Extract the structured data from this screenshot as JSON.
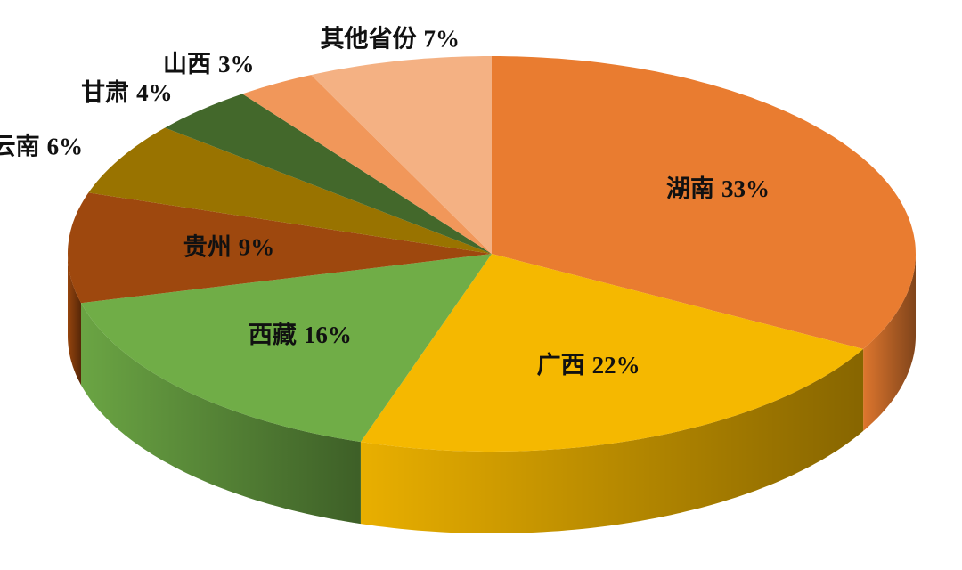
{
  "chart_data": {
    "type": "pie",
    "categories": [
      "湖南",
      "广西",
      "西藏",
      "贵州",
      "云南",
      "甘肃",
      "山西",
      "其他省份"
    ],
    "values": [
      33,
      22,
      16,
      9,
      6,
      4,
      3,
      7
    ],
    "value_labels": [
      "33%",
      "22%",
      "16%",
      "9%",
      "6%",
      "4%",
      "3%",
      "7%"
    ],
    "colors": [
      "#e97c30",
      "#f5b800",
      "#70ad47",
      "#9e480e",
      "#997300",
      "#43682b",
      "#f1975a",
      "#f4b183"
    ]
  }
}
